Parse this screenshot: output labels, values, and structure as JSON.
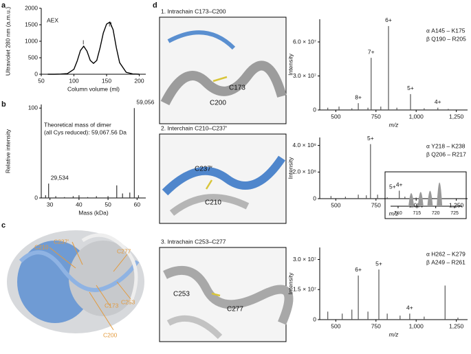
{
  "panels": [
    "a",
    "b",
    "c",
    "d"
  ],
  "overview_labels": [
    "C210",
    "C237′",
    "C277",
    "C253",
    "C173",
    "C200"
  ],
  "structures": [
    {
      "title": "1. Intrachain C173–C200",
      "labels": [
        "C173",
        "C200"
      ]
    },
    {
      "title": "2. Interchain C210–C237′",
      "labels": [
        "C237′",
        "C210"
      ]
    },
    {
      "title": "3. Intrachain C253–C277",
      "labels": [
        "C253",
        "C277"
      ]
    }
  ],
  "chart_data": [
    {
      "type": "line",
      "xlabel": "Column volume (ml)",
      "ylabel": "Ultraviolet 280 nm (a.m.u.)",
      "color": "#000000",
      "xlim": [
        50,
        210
      ],
      "xticks": [
        50,
        100,
        150,
        200
      ],
      "ylim": [
        0,
        2000
      ],
      "yticks": [
        0,
        500,
        1000,
        1500,
        2000
      ],
      "annotations": [
        "AEX",
        "I",
        "II"
      ],
      "x": [
        60,
        70,
        80,
        90,
        100,
        105,
        110,
        115,
        120,
        125,
        130,
        135,
        140,
        145,
        150,
        155,
        160,
        165,
        170,
        180,
        190,
        200
      ],
      "values": [
        0,
        0,
        5,
        20,
        150,
        400,
        720,
        850,
        700,
        420,
        330,
        420,
        800,
        1250,
        1520,
        1580,
        1350,
        800,
        350,
        60,
        10,
        0
      ]
    },
    {
      "type": "stem",
      "xlabel": "Mass (kDa)",
      "ylabel": "Relative intensity",
      "color": "#333333",
      "xlim": [
        27,
        63
      ],
      "xticks": [
        30,
        40,
        50,
        60
      ],
      "ylim": [
        0,
        104
      ],
      "yticks": [
        0,
        100
      ],
      "annotations": [
        "Theoretical mass of dimer",
        "(all Cys reduced): 59,067.56 Da"
      ],
      "x": [
        28.5,
        29.534,
        32,
        35,
        38,
        40,
        43,
        46,
        50,
        53,
        55,
        57.5,
        59.056,
        60.5
      ],
      "values": [
        3,
        16,
        2,
        1,
        2,
        3,
        1,
        2,
        2,
        14,
        5,
        6,
        100,
        3
      ],
      "value_labels": [
        null,
        "29,534",
        null,
        null,
        null,
        null,
        null,
        null,
        null,
        null,
        null,
        null,
        "59,056",
        null
      ]
    },
    {
      "type": "stem",
      "xlabel": "m/z",
      "ylabel": "Intensity",
      "color": "#555555",
      "xlim": [
        400,
        1320
      ],
      "xticks": [
        500,
        750,
        {
          "value": 1000,
          "label": "1,000"
        },
        {
          "value": 1250,
          "label": "1,250"
        }
      ],
      "ylim": [
        0,
        80000000
      ],
      "yticks": [
        0,
        {
          "value": 30000000,
          "label": "3.0 × 10⁷"
        },
        {
          "value": 60000000,
          "label": "6.0 × 10⁷"
        }
      ],
      "annotations": [
        "α  A145 – K175",
        "β  Q190 – R205"
      ],
      "x": [
        450,
        520,
        600,
        640,
        700,
        720,
        780,
        828,
        880,
        965,
        1050,
        1135,
        1200
      ],
      "values": [
        2000000,
        3000000,
        1500000,
        6000000,
        2000000,
        46000000,
        3000000,
        74000000,
        2000000,
        14000000,
        1500000,
        2000000,
        1000000
      ],
      "value_labels": [
        null,
        null,
        null,
        "8+",
        null,
        "7+",
        null,
        "6+",
        null,
        "5+",
        null,
        "4+",
        null
      ]
    },
    {
      "type": "stem",
      "xlabel": "m/z",
      "ylabel": "Intensity",
      "color": "#555555",
      "xlim": [
        400,
        1320
      ],
      "xticks": [
        500,
        750,
        {
          "value": 1000,
          "label": "1,000"
        },
        {
          "value": 1250,
          "label": "1,250"
        }
      ],
      "ylim": [
        0,
        460000000
      ],
      "yticks": [
        0,
        {
          "value": 200000000,
          "label": "2.0 × 10⁸"
        },
        {
          "value": 400000000,
          "label": "4.0 × 10⁸"
        }
      ],
      "annotations": [
        "α  Y218 – K238",
        "β  Q206 – R217"
      ],
      "x": [
        470,
        560,
        640,
        690,
        716,
        760,
        820,
        895,
        930,
        1000,
        1100
      ],
      "values": [
        20000000,
        15000000,
        30000000,
        25000000,
        410000000,
        30000000,
        10000000,
        60000000,
        15000000,
        8000000,
        5000000
      ],
      "value_labels": [
        null,
        null,
        null,
        null,
        "5+",
        null,
        null,
        "4+",
        null,
        null,
        null
      ]
    },
    {
      "type": "stem",
      "color": "#999999",
      "annotations": [
        "5+"
      ],
      "xlim": [
        708,
        727
      ],
      "xticks": [
        710,
        715,
        720,
        725
      ],
      "ylim": [
        0,
        1.1
      ],
      "x": [
        713.5,
        716,
        718.5,
        721
      ],
      "values": [
        0.55,
        0.6,
        0.65,
        1.0
      ]
    },
    {
      "type": "stem",
      "xlabel": "m/z",
      "ylabel": "Intensity",
      "color": "#555555",
      "xlim": [
        400,
        1320
      ],
      "xticks": [
        500,
        750,
        {
          "value": 1000,
          "label": "1,000"
        },
        {
          "value": 1250,
          "label": "1,250"
        }
      ],
      "ylim": [
        0,
        36000000
      ],
      "yticks": [
        0,
        {
          "value": 15000000,
          "label": "1.5 × 10⁷"
        },
        {
          "value": 30000000,
          "label": "3.0 × 10⁷"
        }
      ],
      "annotations": [
        "α  H262 – K279",
        "β  A249 – R261"
      ],
      "x": [
        450,
        540,
        600,
        640,
        700,
        768,
        820,
        900,
        960,
        1050,
        1180,
        1260
      ],
      "values": [
        4000000,
        3000000,
        5000000,
        22000000,
        4000000,
        25000000,
        3000000,
        2000000,
        3000000,
        1500000,
        17000000,
        1000000
      ],
      "value_labels": [
        null,
        null,
        null,
        "6+",
        null,
        "5+",
        null,
        null,
        "4+",
        null,
        null,
        null
      ]
    }
  ]
}
